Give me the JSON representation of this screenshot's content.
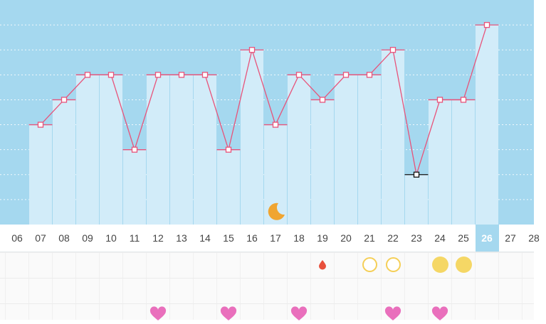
{
  "calendar": {
    "days": [
      "06",
      "07",
      "08",
      "09",
      "10",
      "11",
      "12",
      "13",
      "14",
      "15",
      "16",
      "17",
      "18",
      "19",
      "20",
      "21",
      "22",
      "23",
      "24",
      "25",
      "26",
      "27",
      "28"
    ],
    "selected_day": "26"
  },
  "chart_data": {
    "type": "line",
    "x": [
      "07",
      "08",
      "09",
      "10",
      "11",
      "12",
      "13",
      "14",
      "15",
      "16",
      "17",
      "18",
      "19",
      "20",
      "21",
      "22",
      "23",
      "24",
      "25",
      "26"
    ],
    "values": [
      4,
      5,
      6,
      6,
      3,
      6,
      6,
      6,
      3,
      7,
      4,
      6,
      5,
      6,
      6,
      7,
      2,
      5,
      5,
      8
    ],
    "ylim": [
      0,
      9
    ],
    "highlight_x": "23",
    "colors": {
      "background": "#a5d8ef",
      "bars": "#d2ecf9",
      "line": "#e8537a",
      "highlight": "#111111"
    },
    "grid": true
  },
  "markers": {
    "moon": {
      "day": "17",
      "icon": "crescent-moon-icon",
      "color": "#f0a531"
    },
    "drops": [
      {
        "day": "19",
        "icon": "drop-icon",
        "color": "#e8503c"
      }
    ],
    "empty_circles": [
      {
        "day": "21"
      },
      {
        "day": "22"
      }
    ],
    "filled_circles": [
      {
        "day": "24"
      },
      {
        "day": "25"
      }
    ],
    "hearts": [
      {
        "day": "12"
      },
      {
        "day": "15"
      },
      {
        "day": "18"
      },
      {
        "day": "22"
      },
      {
        "day": "24"
      }
    ],
    "colors": {
      "circle": "#f5cf57",
      "heart": "#e96fbc"
    }
  }
}
